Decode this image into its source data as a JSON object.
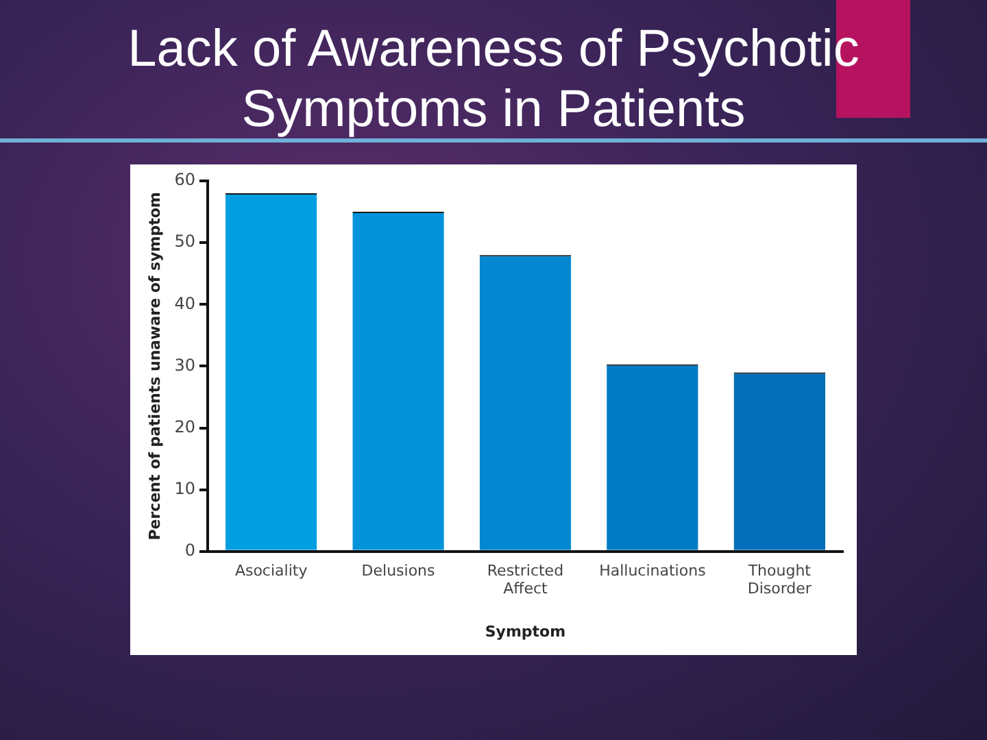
{
  "chart_data": {
    "type": "bar",
    "title": "Lack of Awareness of Psychotic Symptoms in Patients",
    "categories": [
      "Asociality",
      "Delusions",
      "Restricted Affect",
      "Hallucinations",
      "Thought Disorder"
    ],
    "values": [
      58,
      55,
      48,
      30.3,
      29
    ],
    "colors": [
      "#039ee0",
      "#0393da",
      "#0287d0",
      "#017ac6",
      "#026db8"
    ],
    "xlabel": "Symptom",
    "ylabel": "Percent of patients unaware of symptom",
    "ylim": [
      0,
      60
    ],
    "yticks": [
      0,
      10,
      20,
      30,
      40,
      50,
      60
    ],
    "grid": false,
    "legend": false
  }
}
